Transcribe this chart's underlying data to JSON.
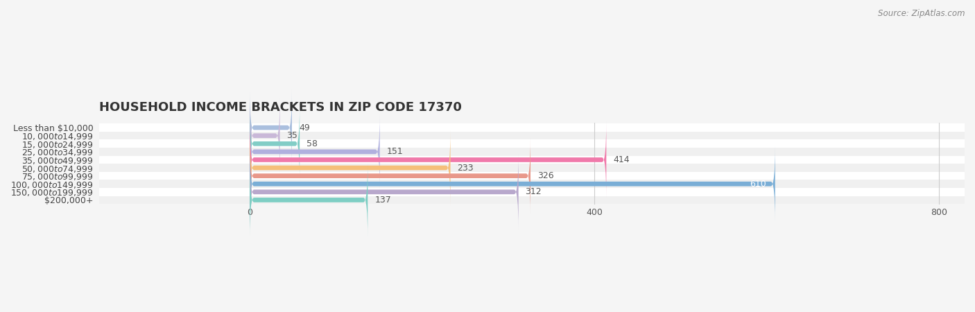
{
  "title": "HOUSEHOLD INCOME BRACKETS IN ZIP CODE 17370",
  "source": "Source: ZipAtlas.com",
  "categories": [
    "Less than $10,000",
    "$10,000 to $14,999",
    "$15,000 to $24,999",
    "$25,000 to $34,999",
    "$35,000 to $49,999",
    "$50,000 to $74,999",
    "$75,000 to $99,999",
    "$100,000 to $149,999",
    "$150,000 to $199,999",
    "$200,000+"
  ],
  "values": [
    49,
    35,
    58,
    151,
    414,
    233,
    326,
    610,
    312,
    137
  ],
  "bar_colors": [
    "#aabfde",
    "#c9b8d8",
    "#82cdc6",
    "#b0b0de",
    "#f079aa",
    "#f5bf7a",
    "#e8988a",
    "#7aaed6",
    "#b8a8cc",
    "#7ecec4"
  ],
  "xlim_left": -175,
  "xlim_right": 830,
  "xticks": [
    0,
    400,
    800
  ],
  "title_fontsize": 13,
  "bar_height": 0.58,
  "fig_width": 14.06,
  "fig_height": 4.5,
  "row_colors": [
    "#ffffff",
    "#f0f0f0"
  ]
}
